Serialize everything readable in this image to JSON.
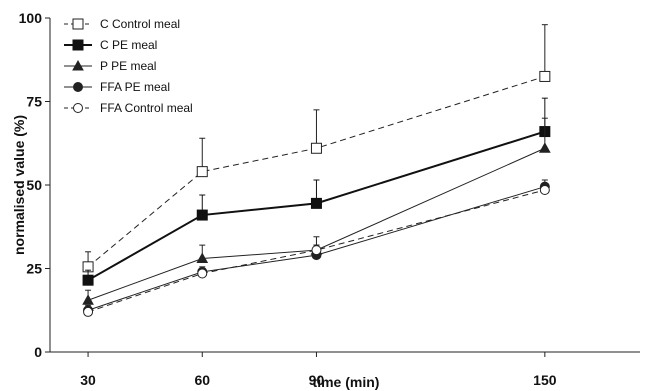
{
  "chart_data": {
    "type": "line",
    "title": "",
    "xlabel": "time (min)",
    "ylabel": "normalised value (%)",
    "x": [
      30,
      60,
      90,
      150
    ],
    "x_tick_labels": [
      "30",
      "60",
      "90",
      "150"
    ],
    "xlim": [
      20,
      175
    ],
    "ylim": [
      0,
      100
    ],
    "y_ticks": [
      0,
      25,
      50,
      75,
      100
    ],
    "grid": false,
    "legend_position": "top-left",
    "series": [
      {
        "name": "C  Control meal",
        "values": [
          25.5,
          54,
          61,
          82.5
        ],
        "error": [
          4.5,
          10,
          11.5,
          15.5
        ],
        "marker": "square-open",
        "dash": "dashed",
        "color": "#222222"
      },
      {
        "name": "C  PE meal",
        "values": [
          21.5,
          41,
          44.5,
          66
        ],
        "error": [
          3,
          6,
          7,
          10
        ],
        "marker": "square-filled",
        "dash": "solid-bold",
        "color": "#111111"
      },
      {
        "name": "P  PE meal",
        "values": [
          15.5,
          28,
          30.5,
          61
        ],
        "error": [
          3,
          4,
          4,
          9
        ],
        "marker": "triangle-filled",
        "dash": "solid",
        "color": "#222222"
      },
      {
        "name": "FFA  PE meal",
        "values": [
          12.5,
          24,
          29,
          49.5
        ],
        "error": [
          1.5,
          1.5,
          3,
          2
        ],
        "marker": "circle-filled",
        "dash": "solid",
        "color": "#222222"
      },
      {
        "name": "FFA  Control meal",
        "values": [
          12,
          23.5,
          30.5,
          48.5
        ],
        "error": [
          1,
          1,
          1.5,
          2
        ],
        "marker": "circle-open",
        "dash": "dashed",
        "color": "#222222"
      }
    ]
  }
}
